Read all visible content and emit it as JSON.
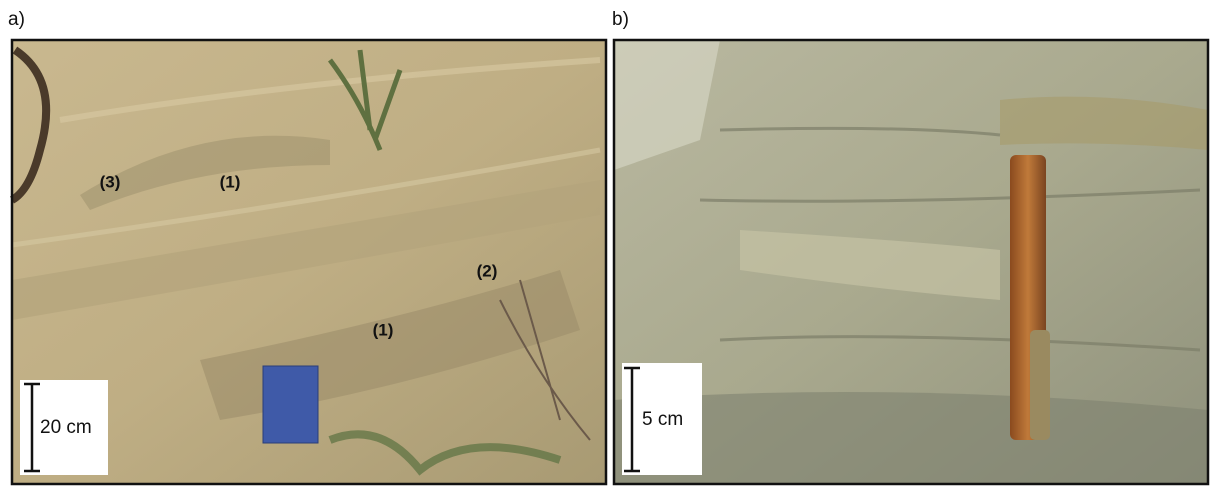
{
  "panels": [
    {
      "label": "a)",
      "scale_label": "20 cm",
      "annotations": [
        "(3)",
        "(1)",
        "(2)",
        "(1)"
      ]
    },
    {
      "label": "b)",
      "scale_label": "5 cm"
    }
  ]
}
